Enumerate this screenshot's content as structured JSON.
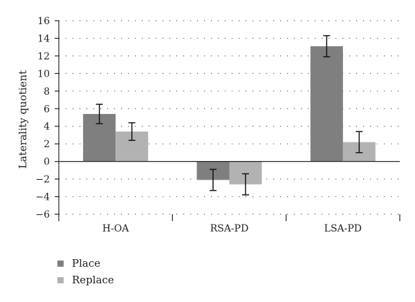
{
  "chart_data": {
    "type": "bar",
    "ylabel": "Laterality quotient",
    "xlabel": "",
    "ylim": [
      -6,
      16
    ],
    "ytick_step": 2,
    "yticks": [
      "−6",
      "−4",
      "−2",
      "0",
      "2",
      "4",
      "6",
      "8",
      "10",
      "12",
      "14",
      "16"
    ],
    "categories": [
      "H-OA",
      "RSA-PD",
      "LSA-PD"
    ],
    "grid": "dotted horizontal",
    "legend_position": "bottom-left",
    "series": [
      {
        "name": "Place",
        "color": "#7f7f7f",
        "values": [
          5.4,
          -2.1,
          13.1
        ],
        "error": [
          1.1,
          1.2,
          1.2
        ]
      },
      {
        "name": "Replace",
        "color": "#b2b2b2",
        "values": [
          3.4,
          -2.6,
          2.2
        ],
        "error": [
          1.0,
          1.2,
          1.2
        ]
      }
    ]
  }
}
